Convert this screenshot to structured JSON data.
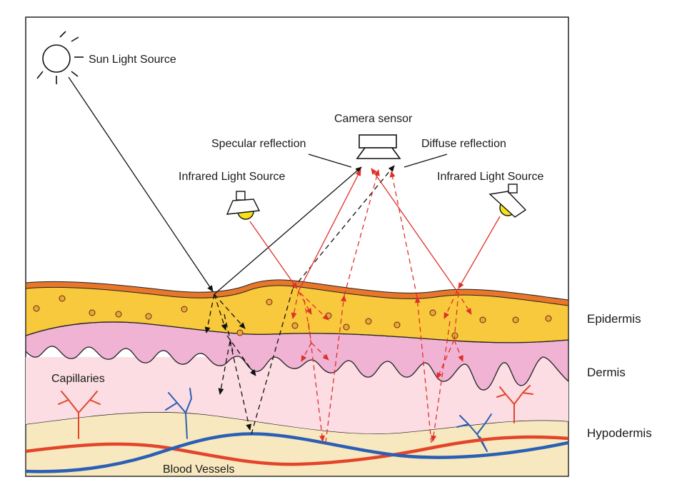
{
  "labels": {
    "sun_source": "Sun Light Source",
    "camera_sensor": "Camera sensor",
    "specular": "Specular reflection",
    "diffuse": "Diffuse reflection",
    "ir_left": "Infrared Light Source",
    "ir_right": "Infrared Light Source",
    "capillaries": "Capillaries",
    "blood_vessels": "Blood Vessels"
  },
  "layers": {
    "epidermis": "Epidermis",
    "dermis": "Dermis",
    "hypodermis": "Hypodermis"
  },
  "colors": {
    "epidermis": "#f8c93c",
    "epidermis_edge": "#e8772a",
    "dermis_upper": "#f0b3d3",
    "dermis_lower": "#fbdde3",
    "hypodermis": "#f7e8bf",
    "vein": "#2a5fb5",
    "artery": "#e2452a",
    "infrared": "#e0302a",
    "sun": "#111111"
  }
}
